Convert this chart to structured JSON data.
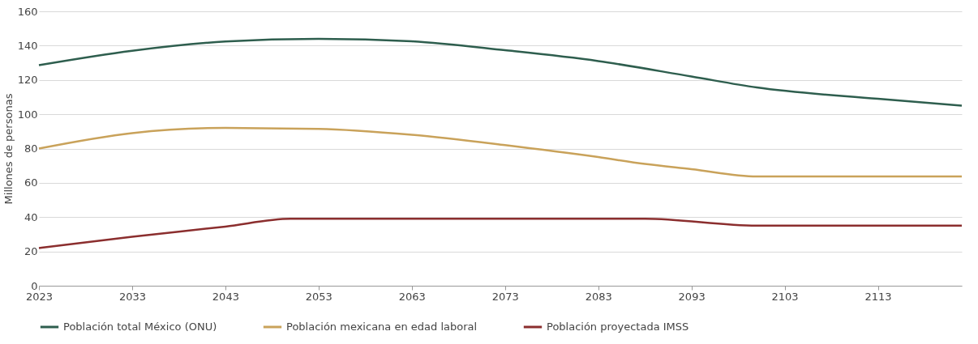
{
  "chart_data": {
    "type": "line",
    "ylabel": "Millones de personas",
    "xlim": [
      2023,
      2122
    ],
    "xticks": [
      2023,
      2033,
      2043,
      2053,
      2063,
      2073,
      2083,
      2093,
      2103,
      2113
    ],
    "ylim": [
      0,
      160
    ],
    "yticks": [
      0,
      20,
      40,
      60,
      80,
      100,
      120,
      140,
      160
    ],
    "grid": "y",
    "legend": "bottom",
    "line_style": "solid",
    "marker": "none",
    "series": [
      {
        "name": "Población total México (ONU)",
        "color": "#2e5e4e",
        "x": [
          2023,
          2033,
          2043,
          2053,
          2063,
          2073,
          2083,
          2093,
          2100,
          2113,
          2122
        ],
        "values": [
          128.6,
          137,
          142.4,
          144,
          142.5,
          137.3,
          131,
          122,
          115.6,
          109,
          105
        ]
      },
      {
        "name": "Población mexicana en edad laboral",
        "color": "#c9a25a",
        "x": [
          2023,
          2033,
          2043,
          2053,
          2063,
          2073,
          2083,
          2088,
          2093,
          2100,
          2122
        ],
        "values": [
          80,
          89,
          92,
          91.5,
          88,
          82,
          75,
          71,
          68,
          63.7,
          63.7
        ]
      },
      {
        "name": "Población proyectada IMSS",
        "color": "#8b2e2e",
        "x": [
          2023,
          2033,
          2043,
          2050,
          2088,
          2100,
          2122
        ],
        "values": [
          22,
          28.5,
          34.5,
          39,
          39,
          35,
          35
        ]
      }
    ]
  }
}
